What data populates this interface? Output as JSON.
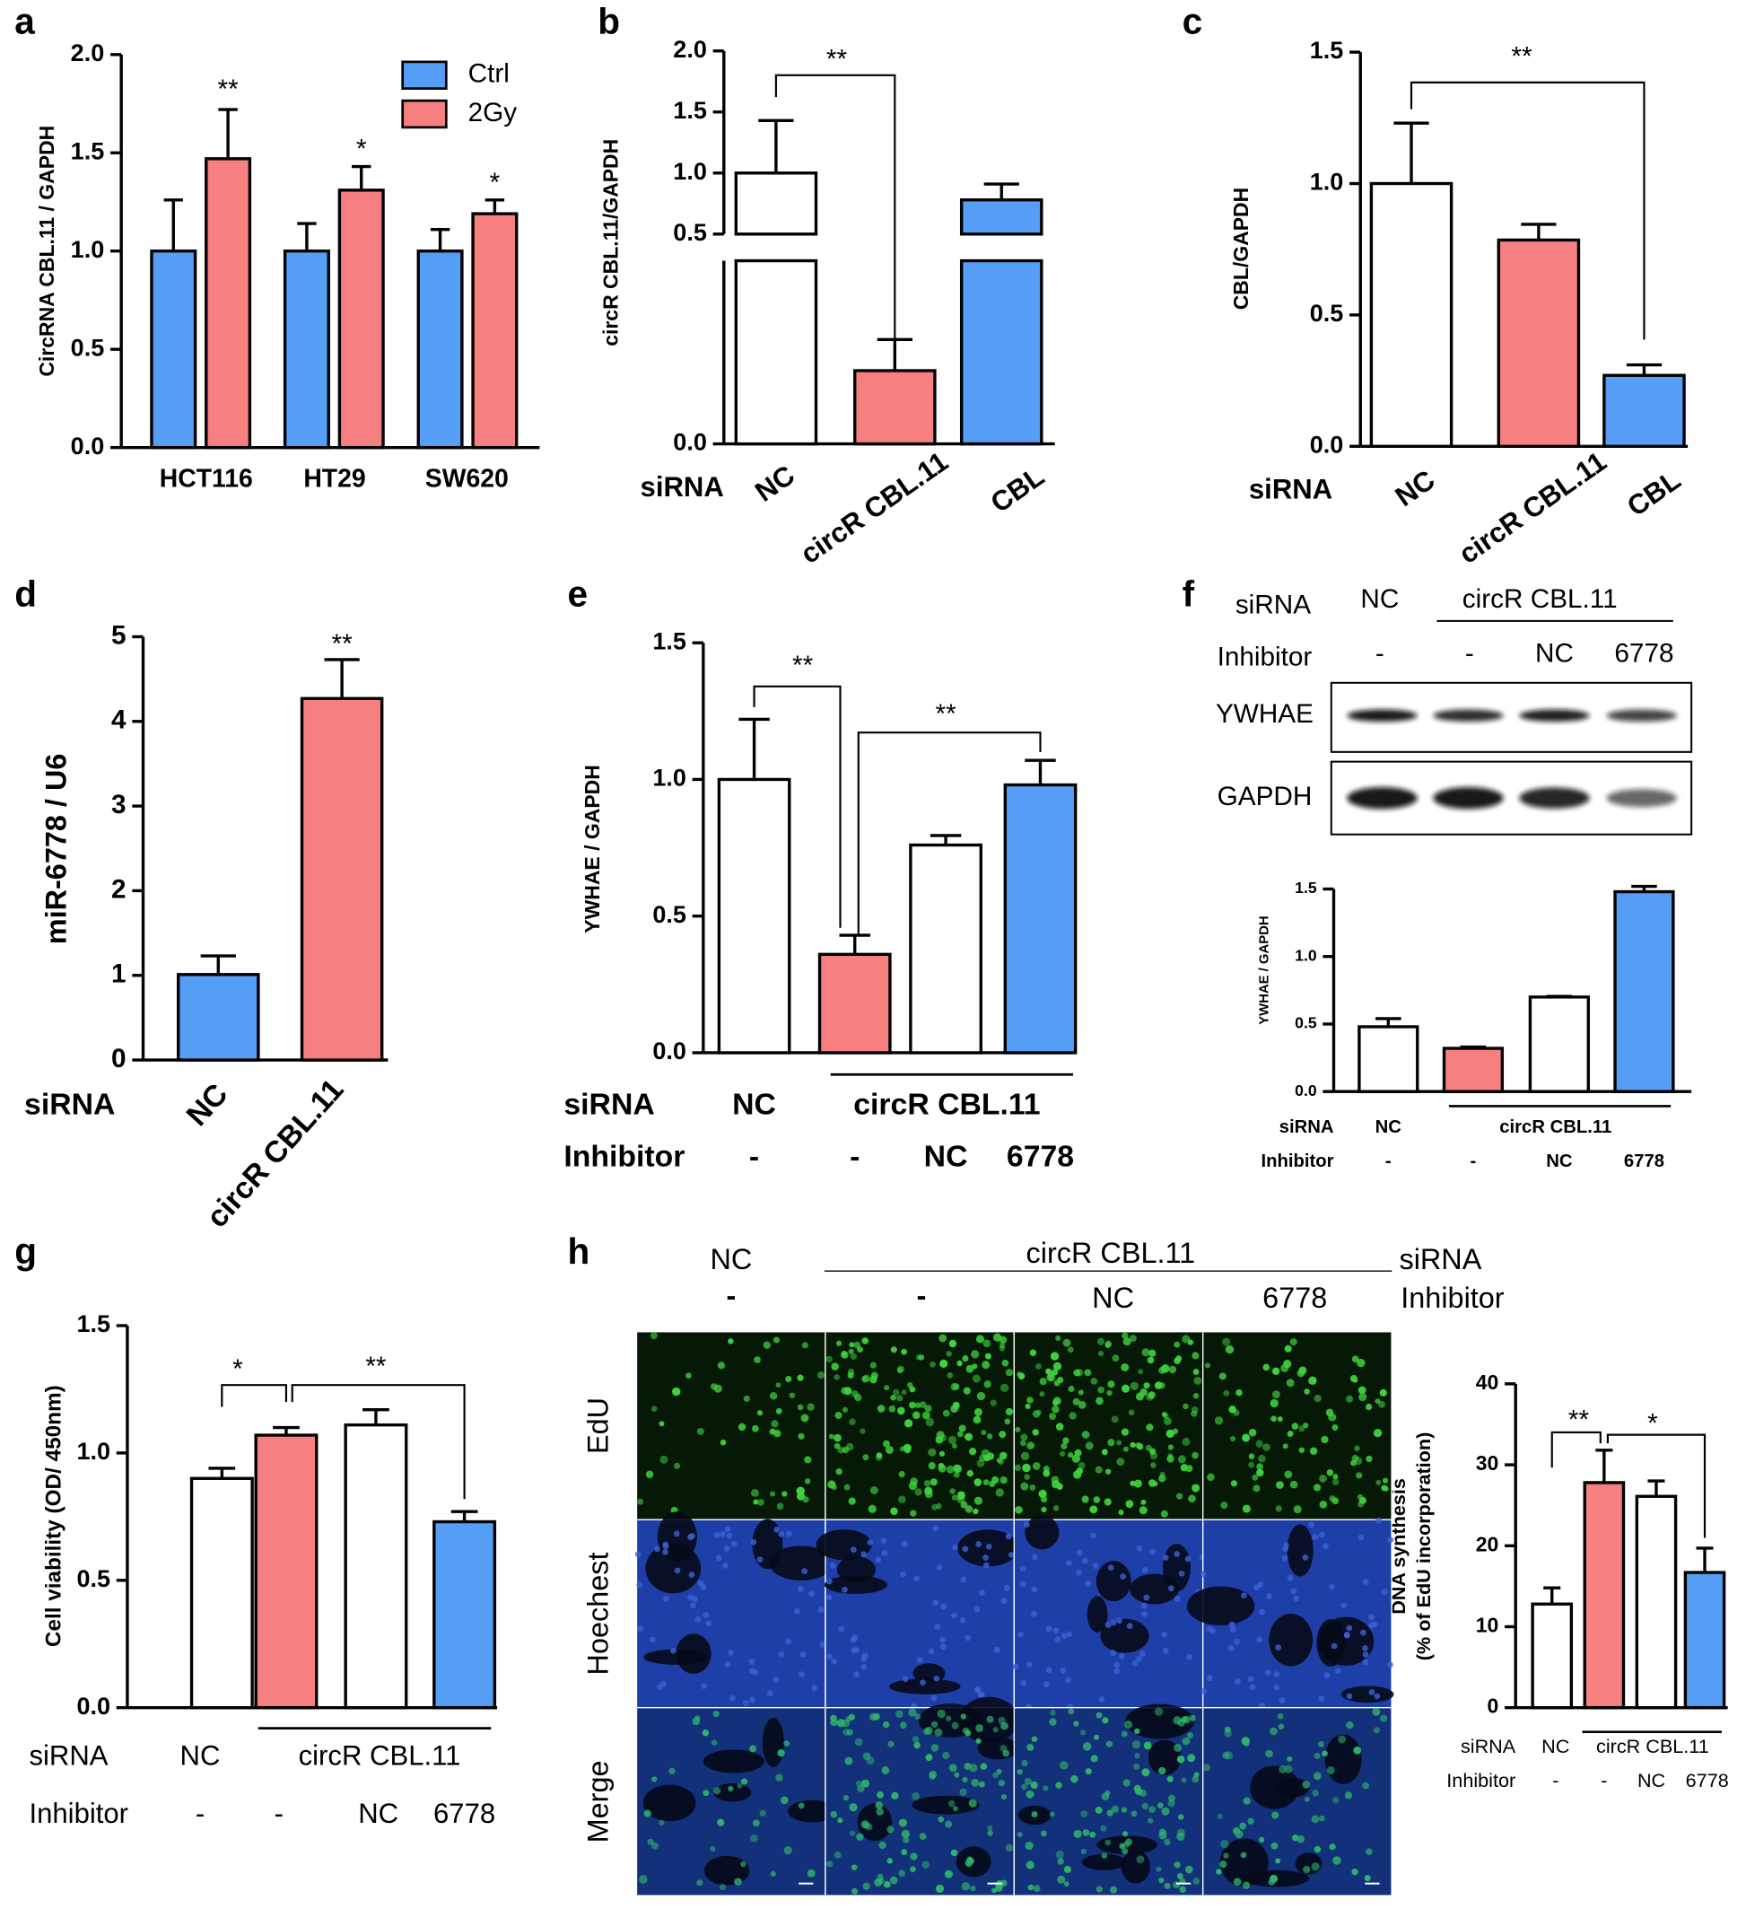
{
  "panel_labels": [
    "a",
    "b",
    "c",
    "d",
    "e",
    "f",
    "g",
    "h"
  ],
  "chart_data": [
    {
      "type": "bar",
      "ylabel": "CircRNA CBL.11 / GAPDH",
      "categories": [
        "HCT116",
        "HT29",
        "SW620"
      ],
      "series": [
        {
          "name": "Ctrl",
          "color": "#569df5",
          "values": [
            1,
            1,
            1
          ],
          "errors": [
            0.26,
            0.14,
            0.11
          ]
        },
        {
          "name": "2Gy",
          "color": "#f67f7f",
          "values": [
            1.47,
            1.31,
            1.19
          ],
          "errors": [
            0.25,
            0.12,
            0.07
          ]
        }
      ],
      "ylim": [
        0,
        2
      ],
      "yticks": [
        {
          "value": 0,
          "label": "0.0"
        },
        0.5,
        {
          "value": 1,
          "label": "1.0"
        },
        1.5,
        {
          "value": 2,
          "label": "2.0"
        }
      ],
      "legend": "upper right",
      "annotations": [
        "**",
        "*",
        "*"
      ]
    },
    {
      "type": "bar",
      "ylabel": "circR CBL.11/GAPDH",
      "rows": [
        {
          "name": "siRNA",
          "labels": [
            "NC",
            "circR CBL.11",
            "CBL"
          ]
        }
      ],
      "values": [
        1,
        0.2,
        0.78
      ],
      "errors": [
        0.43,
        0.085,
        0.13
      ],
      "colors": [
        "#ffffff",
        "#f67f7f",
        "#569df5"
      ],
      "ylim": [
        0,
        2
      ],
      "axis_break": 0.5,
      "yticks": [
        {
          "value": 0,
          "label": "0.0"
        },
        0.5,
        {
          "value": 1,
          "label": "1.0"
        },
        1.5,
        {
          "value": 2,
          "label": "2.0"
        }
      ],
      "annotations": [
        "**"
      ]
    },
    {
      "type": "bar",
      "ylabel": "CBL/GAPDH",
      "rows": [
        {
          "name": "siRNA",
          "labels": [
            "NC",
            "circR CBL.11",
            "CBL"
          ]
        }
      ],
      "values": [
        1,
        0.785,
        0.27
      ],
      "errors": [
        0.23,
        0.06,
        0.04
      ],
      "colors": [
        "#ffffff",
        "#f67f7f",
        "#569df5"
      ],
      "ylim": [
        0,
        1.5
      ],
      "yticks": [
        {
          "value": 0,
          "label": "0.0"
        },
        0.5,
        {
          "value": 1,
          "label": "1.0"
        },
        1.5
      ],
      "annotations": [
        "**"
      ]
    },
    {
      "type": "bar",
      "ylabel": "miR-6778 / U6",
      "rows": [
        {
          "name": "siRNA",
          "labels": [
            "NC",
            "circR CBL.11"
          ]
        }
      ],
      "values": [
        1.01,
        4.27
      ],
      "errors": [
        0.22,
        0.46
      ],
      "colors": [
        "#569df5",
        "#f67f7f"
      ],
      "ylim": [
        0,
        5
      ],
      "yticks": [
        0,
        1,
        2,
        3,
        4,
        5
      ],
      "annotations": [
        "**"
      ]
    },
    {
      "type": "bar",
      "ylabel": "YWHAE / GAPDH",
      "rows": [
        {
          "name": "siRNA",
          "labels": [
            "NC",
            "circR CBL.11"
          ]
        },
        {
          "name": "Inhibitor",
          "labels": [
            "-",
            "-",
            "NC",
            "6778"
          ]
        }
      ],
      "values": [
        1,
        0.36,
        0.76,
        0.98
      ],
      "errors": [
        0.22,
        0.07,
        0.035,
        0.09
      ],
      "colors": [
        "#ffffff",
        "#f67f7f",
        "#ffffff",
        "#569df5"
      ],
      "ylim": [
        0,
        1.5
      ],
      "yticks": [
        {
          "value": 0,
          "label": "0.0"
        },
        0.5,
        {
          "value": 1,
          "label": "1.0"
        },
        1.5
      ],
      "annotations": [
        "**",
        "**"
      ]
    },
    {
      "type": "bar",
      "ylabel": "YWHAE / GAPDH",
      "rows": [
        {
          "name": "siRNA",
          "labels": [
            "NC",
            "circR CBL.11"
          ]
        },
        {
          "name": "Inhibitor",
          "labels": [
            "-",
            "-",
            "NC",
            "6778"
          ]
        }
      ],
      "values": [
        0.48,
        0.32,
        0.7,
        1.48
      ],
      "errors": [
        0.06,
        0.01,
        0.005,
        0.04
      ],
      "colors": [
        "#ffffff",
        "#f67f7f",
        "#ffffff",
        "#569df5"
      ],
      "ylim": [
        0,
        1.5
      ],
      "yticks": [
        {
          "value": 0,
          "label": "0.0"
        },
        0.5,
        {
          "value": 1,
          "label": "1.0"
        },
        1.5
      ]
    },
    {
      "type": "bar",
      "ylabel": "Cell viability (OD/ 450nm)",
      "rows": [
        {
          "name": "siRNA",
          "labels": [
            "NC",
            "circR CBL.11"
          ]
        },
        {
          "name": "Inhibitor",
          "labels": [
            "-",
            "-",
            "NC",
            "6778"
          ]
        }
      ],
      "values": [
        0.9,
        1.07,
        1.11,
        0.73
      ],
      "errors": [
        0.04,
        0.03,
        0.06,
        0.04
      ],
      "colors": [
        "#ffffff",
        "#f67f7f",
        "#ffffff",
        "#569df5"
      ],
      "ylim": [
        0,
        1.5
      ],
      "yticks": [
        {
          "value": 0,
          "label": "0.0"
        },
        0.5,
        {
          "value": 1,
          "label": "1.0"
        },
        1.5
      ],
      "annotations": [
        "*",
        "**"
      ]
    },
    {
      "type": "bar",
      "ylabel": [
        "DNA synthesis",
        "(% of EdU incorporation)"
      ],
      "rows": [
        {
          "name": "siRNA",
          "labels": [
            "NC",
            "circR CBL.11"
          ]
        },
        {
          "name": "Inhibitor",
          "labels": [
            "-",
            "-",
            "NC",
            "6778"
          ]
        }
      ],
      "values": [
        12.8,
        27.8,
        26.1,
        16.7
      ],
      "errors": [
        2,
        4,
        1.9,
        3
      ],
      "colors": [
        "#ffffff",
        "#f67f7f",
        "#ffffff",
        "#569df5"
      ],
      "ylim": [
        0,
        40
      ],
      "yticks": [
        0,
        10,
        20,
        30,
        40
      ],
      "annotations": [
        "**",
        "*"
      ]
    }
  ],
  "blot": {
    "rows": [
      {
        "name": "siRNA",
        "labels": [
          "NC",
          "circR CBL.11"
        ]
      },
      {
        "name": "Inhibitor",
        "labels": [
          "-",
          "-",
          "NC",
          "6778"
        ]
      }
    ],
    "bands": [
      "YWHAE",
      "GAPDH"
    ]
  },
  "microscopy": {
    "rows": [
      {
        "name": "siRNA",
        "labels": [
          "NC",
          "circR CBL.11"
        ]
      },
      {
        "name": "Inhibitor",
        "labels": [
          "-",
          "-",
          "NC",
          "6778"
        ]
      }
    ],
    "channels": [
      "EdU",
      "Hoechest",
      "Merge"
    ]
  }
}
